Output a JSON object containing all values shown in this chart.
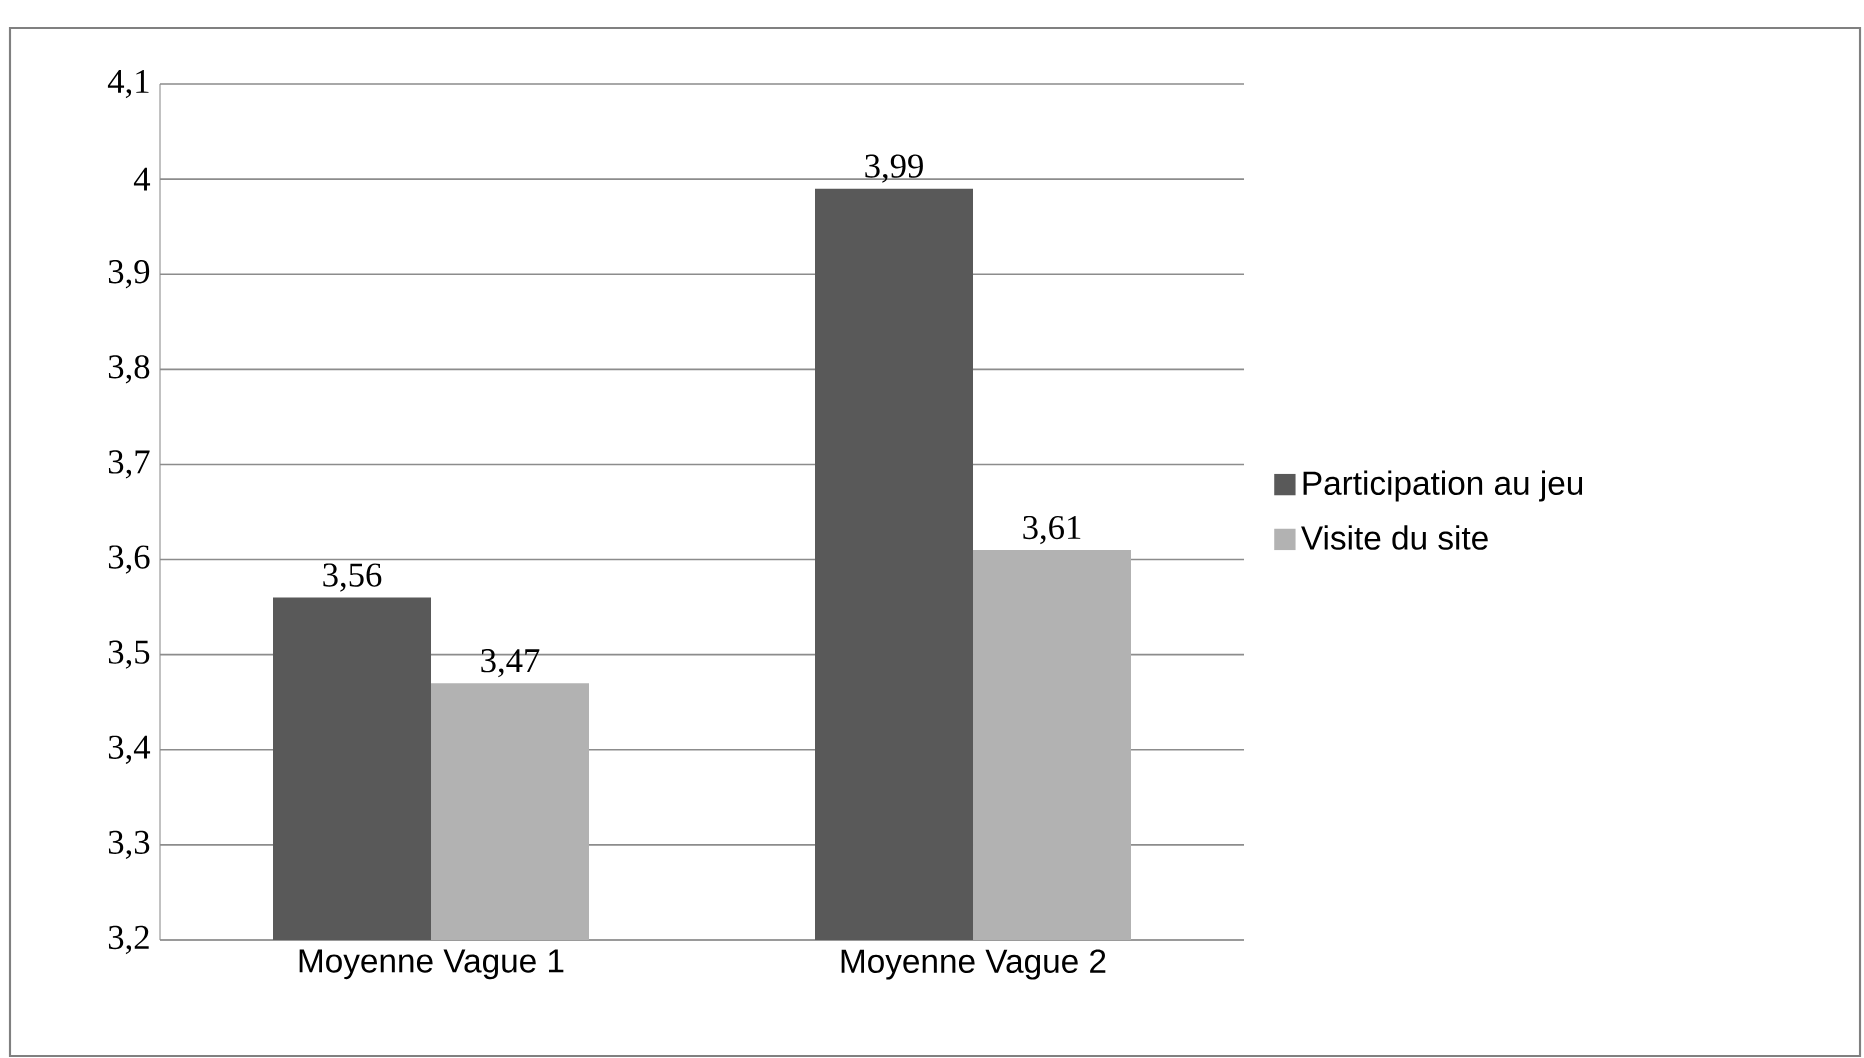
{
  "chart_data": {
    "type": "bar",
    "categories": [
      "Moyenne Vague 1",
      "Moyenne Vague 2"
    ],
    "series": [
      {
        "name": "Participation au jeu",
        "color": "#595959",
        "values": [
          3.56,
          3.99
        ],
        "value_labels": [
          "3,56",
          "3,99"
        ]
      },
      {
        "name": "Visite du site",
        "color": "#b2b2b2",
        "values": [
          3.47,
          3.61
        ],
        "value_labels": [
          "3,47",
          "3,61"
        ]
      }
    ],
    "ylim": [
      3.2,
      4.1
    ],
    "yticks": [
      {
        "value": 3.2,
        "label": "3,2"
      },
      {
        "value": 3.3,
        "label": "3,3"
      },
      {
        "value": 3.4,
        "label": "3,4"
      },
      {
        "value": 3.5,
        "label": "3,5"
      },
      {
        "value": 3.6,
        "label": "3,6"
      },
      {
        "value": 3.7,
        "label": "3,7"
      },
      {
        "value": 3.8,
        "label": "3,8"
      },
      {
        "value": 3.9,
        "label": "3,9"
      },
      4,
      {
        "value": 4.1,
        "label": "4,1"
      }
    ],
    "grid": "y",
    "legend": "right"
  }
}
